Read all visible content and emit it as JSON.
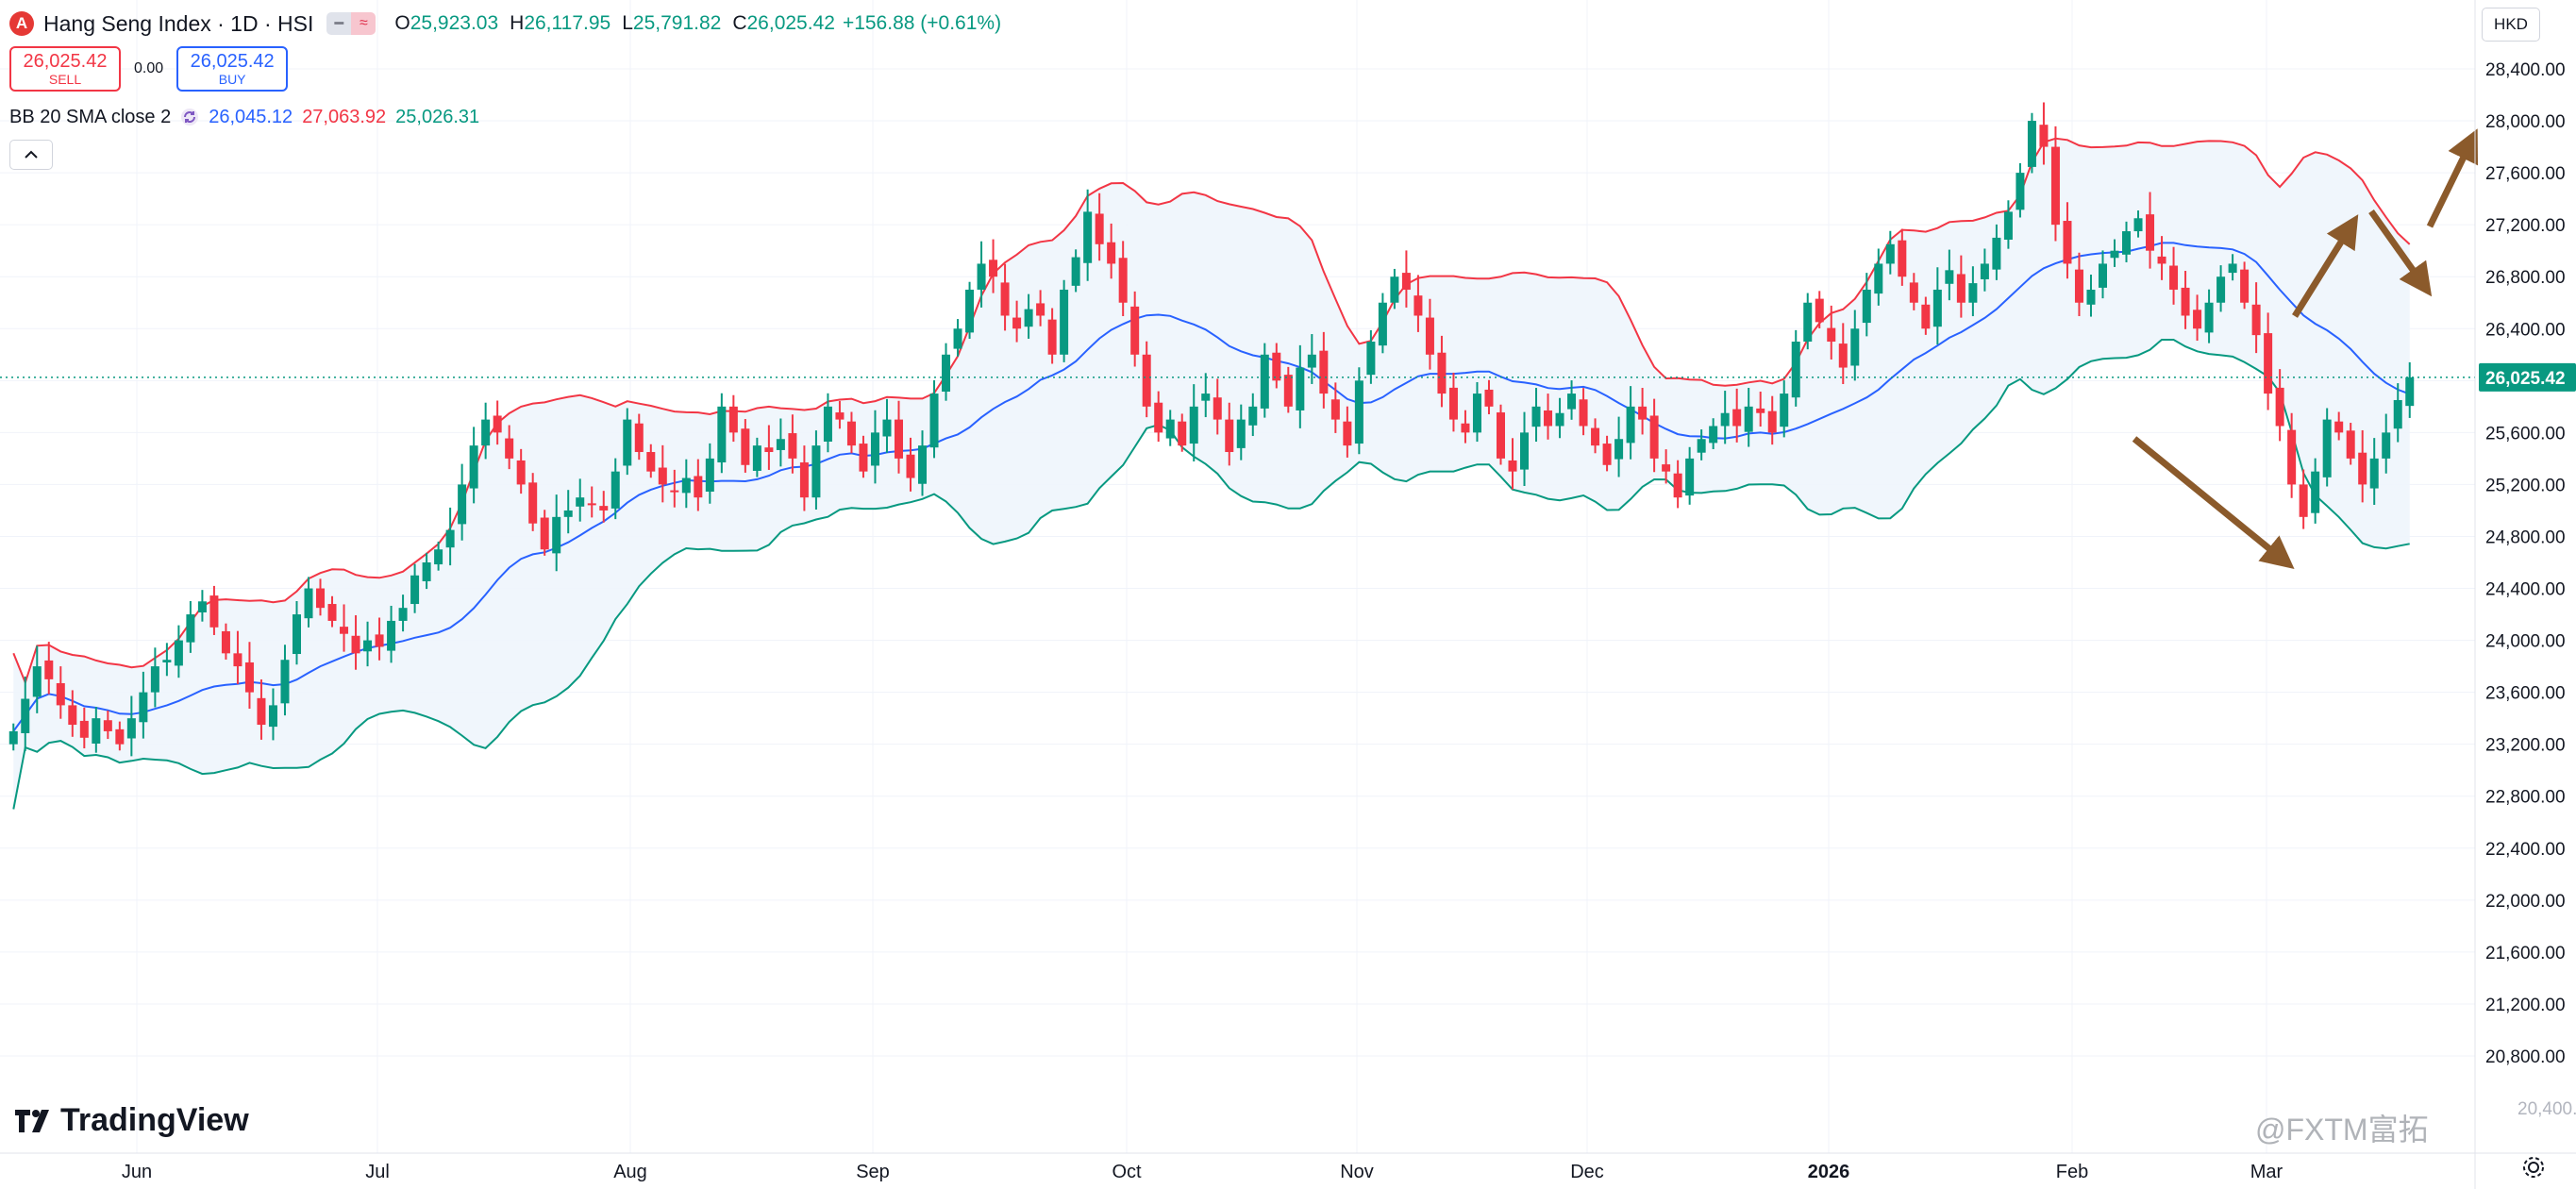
{
  "header": {
    "symbol_badge": "A",
    "title": "Hang Seng Index · 1D · HSI",
    "ohlc": {
      "o_label": "O",
      "o": "25,923.03",
      "h_label": "H",
      "h": "26,117.95",
      "l_label": "L",
      "l": "25,791.82",
      "c_label": "C",
      "c": "26,025.42",
      "change": "+156.88 (+0.61%)"
    },
    "sell_price": "26,025.42",
    "sell_label": "SELL",
    "spread": "0.00",
    "buy_price": "26,025.42",
    "buy_label": "BUY",
    "bb_title": "BB 20 SMA close 2",
    "bb_basis": "26,045.12",
    "bb_upper": "27,063.92",
    "bb_lower": "25,026.31"
  },
  "currency": "HKD",
  "brand": "TradingView",
  "watermark": "@FXTM富拓",
  "colors": {
    "up": "#089981",
    "down": "#f23645",
    "basis": "#2962ff",
    "upper": "#f23645",
    "lower": "#089981",
    "band_fill": "#eef5fc",
    "arrows": "#8b5a2b"
  },
  "chart_data": {
    "type": "candlestick",
    "title": "Hang Seng Index · 1D · HSI",
    "ylim": [
      20400,
      29000
    ],
    "y_ticks": [
      20800,
      21200,
      21600,
      22000,
      22400,
      22800,
      23200,
      23600,
      24000,
      24400,
      24800,
      25200,
      25600,
      26000,
      26400,
      26800,
      27200,
      27600,
      28000,
      28400
    ],
    "y_tick_labels": [
      "20,800.00",
      "21,200.00",
      "21,600.00",
      "22,000.00",
      "22,400.00",
      "22,800.00",
      "23,200.00",
      "23,600.00",
      "24,000.00",
      "24,400.00",
      "24,800.00",
      "25,200.00",
      "25,600.00",
      "26,000.00",
      "26,400.00",
      "26,800.00",
      "27,200.00",
      "27,600.00",
      "28,000.00",
      "28,400.00"
    ],
    "partial_top_label": "28,400.00",
    "x_labels": [
      "Jun",
      "Jul",
      "Aug",
      "Sep",
      "Oct",
      "Nov",
      "Dec",
      "2026",
      "Feb",
      "Mar"
    ],
    "last_price": 26025.42,
    "last_price_label": "26,025.42",
    "bottom_partial_label": "20,400.00",
    "closes": [
      23300,
      23550,
      23800,
      23700,
      23500,
      23350,
      23250,
      23400,
      23300,
      23200,
      23400,
      23600,
      23800,
      23850,
      24000,
      24200,
      24300,
      24100,
      23900,
      23800,
      23600,
      23350,
      23500,
      23850,
      24200,
      24400,
      24250,
      24150,
      24050,
      23900,
      24000,
      23950,
      24150,
      24250,
      24500,
      24600,
      24700,
      24850,
      25200,
      25500,
      25700,
      25600,
      25400,
      25200,
      24900,
      24700,
      24950,
      25000,
      25100,
      25050,
      25000,
      25300,
      25700,
      25450,
      25300,
      25200,
      25150,
      25250,
      25100,
      25400,
      25800,
      25600,
      25350,
      25500,
      25450,
      25550,
      25400,
      25100,
      25500,
      25800,
      25700,
      25500,
      25300,
      25600,
      25700,
      25400,
      25250,
      25500,
      25900,
      26200,
      26400,
      26700,
      26900,
      26800,
      26500,
      26400,
      26550,
      26500,
      26200,
      26700,
      26950,
      27300,
      27050,
      26900,
      26600,
      26200,
      25800,
      25600,
      25700,
      25500,
      25800,
      25900,
      25700,
      25450,
      25700,
      25800,
      26200,
      26000,
      25800,
      26100,
      26200,
      25900,
      25700,
      25500,
      26000,
      26300,
      26600,
      26800,
      26700,
      26500,
      26200,
      25900,
      25700,
      25600,
      25900,
      25800,
      25400,
      25300,
      25600,
      25800,
      25650,
      25750,
      25900,
      25650,
      25500,
      25350,
      25550,
      25800,
      25700,
      25400,
      25300,
      25100,
      25400,
      25550,
      25650,
      25750,
      25650,
      25800,
      25750,
      25600,
      25900,
      26300,
      26600,
      26450,
      26300,
      26100,
      26400,
      26700,
      26900,
      27050,
      26800,
      26600,
      26400,
      26700,
      26850,
      26600,
      26750,
      26900,
      27100,
      27300,
      27600,
      28000,
      27800,
      27200,
      26900,
      26600,
      26700,
      26900,
      27000,
      27150,
      27250,
      27000,
      26900,
      26700,
      26500,
      26400,
      26600,
      26800,
      26900,
      26600,
      26350,
      25900,
      25650,
      25200,
      24950,
      25300,
      25700,
      25600,
      25400,
      25200,
      25400,
      25600,
      25850,
      26025
    ]
  }
}
